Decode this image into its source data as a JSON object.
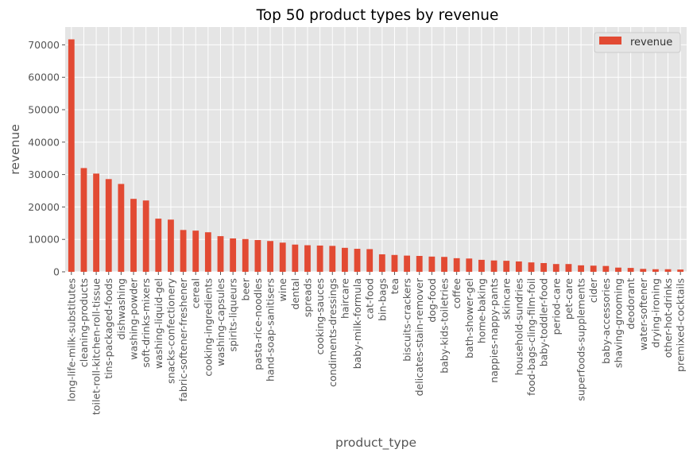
{
  "chart_data": {
    "type": "bar",
    "title": "Top 50 product types by revenue",
    "xlabel": "product_type",
    "ylabel": "revenue",
    "ylim": [
      0,
      75500
    ],
    "yticks": [
      0,
      10000,
      20000,
      30000,
      40000,
      50000,
      60000,
      70000
    ],
    "grid": true,
    "legend_position": "top-right",
    "bar_color": "#E24A33",
    "plot_background": "#E5E5E5",
    "categories": [
      "long-life-milk-substitutes",
      "cleaning-products",
      "toilet-roll-kitchen-roll-tissue",
      "tins-packaged-foods",
      "dishwashing",
      "washing-powder",
      "soft-drinks-mixers",
      "washing-liquid-gel",
      "snacks-confectionery",
      "fabric-softener-freshener",
      "cereal",
      "cooking-ingredients",
      "washing-capsules",
      "spirits-liqueurs",
      "beer",
      "pasta-rice-noodles",
      "hand-soap-sanitisers",
      "wine",
      "dental",
      "spreads",
      "cooking-sauces",
      "condiments-dressings",
      "haircare",
      "baby-milk-formula",
      "cat-food",
      "bin-bags",
      "tea",
      "biscuits-crackers",
      "delicates-stain-remover",
      "dog-food",
      "baby-kids-toiletries",
      "coffee",
      "bath-shower-gel",
      "home-baking",
      "nappies-nappy-pants",
      "skincare",
      "household-sundries",
      "food-bags-cling-film-foil",
      "baby-toddler-food",
      "period-care",
      "pet-care",
      "superfoods-supplements",
      "cider",
      "baby-accessories",
      "shaving-grooming",
      "deodorant",
      "water-softener",
      "drying-ironing",
      "other-hot-drinks",
      "premixed-cocktails"
    ],
    "series": [
      {
        "name": "revenue",
        "values": [
          71700,
          32000,
          30300,
          28600,
          27100,
          22500,
          22000,
          16400,
          16100,
          12900,
          12700,
          12200,
          11000,
          10300,
          10100,
          9800,
          9500,
          9000,
          8400,
          8200,
          8100,
          8000,
          7400,
          7100,
          7000,
          5400,
          5200,
          5000,
          4900,
          4700,
          4600,
          4200,
          4100,
          3700,
          3500,
          3400,
          3200,
          2900,
          2700,
          2400,
          2400,
          2000,
          1900,
          1800,
          1300,
          1200,
          900,
          800,
          800,
          700
        ]
      }
    ]
  }
}
